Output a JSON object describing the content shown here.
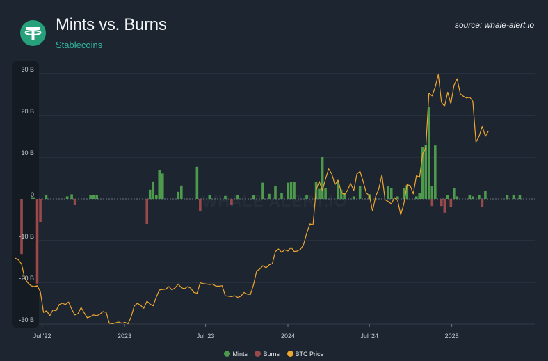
{
  "header": {
    "title": "Mints vs. Burns",
    "subtitle": "Stablecoins",
    "source": "source: whale-alert.io",
    "logo_icon": "tether-logo-icon"
  },
  "colors": {
    "background": "#1c2530",
    "mints": "#4e9a4c",
    "burns": "#9b4a4c",
    "btc_price": "#f0a730",
    "subtitle": "#34b3a0",
    "grid": "#3a4550",
    "axis_band": "#141b22"
  },
  "chart_data": {
    "type": "bar",
    "title": "Mints vs. Burns",
    "subtitle": "Stablecoins",
    "xlabel": "",
    "ylabel": "",
    "ylim": [
      -30,
      30
    ],
    "y_unit": "B",
    "y_ticks": [
      {
        "value": 30,
        "label": "30 B"
      },
      {
        "value": 20,
        "label": "20 B"
      },
      {
        "value": 10,
        "label": "10 B"
      },
      {
        "value": 0,
        "label": "0"
      },
      {
        "value": -10,
        "label": "-10 B"
      },
      {
        "value": -20,
        "label": "-20 B"
      },
      {
        "value": -30,
        "label": "-30 B"
      }
    ],
    "x_range": [
      "2022-05-02",
      "2025-07-07"
    ],
    "x_ticks": [
      {
        "date": "2022-07-01",
        "label": "Jul '22"
      },
      {
        "date": "2023-01-01",
        "label": "2023"
      },
      {
        "date": "2023-07-01",
        "label": "Jul '23"
      },
      {
        "date": "2024-01-01",
        "label": "2024"
      },
      {
        "date": "2024-07-01",
        "label": "Jul '24"
      },
      {
        "date": "2025-01-01",
        "label": "2025"
      }
    ],
    "legend": {
      "placement": "bottom-center",
      "items": [
        "Mints",
        "Burns",
        "BTC Price"
      ]
    },
    "watermark": "WHALE ALERT.IO",
    "series": [
      {
        "name": "Mints",
        "kind": "bar",
        "points": [
          [
            "2022-06-08",
            0.4
          ],
          [
            "2022-06-12",
            0.4
          ],
          [
            "2022-07-10",
            1.0
          ],
          [
            "2022-08-26",
            0.6
          ],
          [
            "2022-09-05",
            1.1
          ],
          [
            "2022-10-17",
            0.9
          ],
          [
            "2022-10-24",
            0.9
          ],
          [
            "2022-10-31",
            0.9
          ],
          [
            "2023-02-27",
            2.2
          ],
          [
            "2023-03-06",
            4.2
          ],
          [
            "2023-03-13",
            1.0
          ],
          [
            "2023-03-20",
            7.0
          ],
          [
            "2023-03-27",
            6.1
          ],
          [
            "2023-05-01",
            1.7
          ],
          [
            "2023-05-08",
            3.2
          ],
          [
            "2023-06-12",
            7.7
          ],
          [
            "2023-07-10",
            1.0
          ],
          [
            "2023-08-14",
            0.7
          ],
          [
            "2023-09-11",
            0.9
          ],
          [
            "2023-10-16",
            0.9
          ],
          [
            "2023-11-06",
            3.9
          ],
          [
            "2023-11-20",
            1.2
          ],
          [
            "2023-12-04",
            3.1
          ],
          [
            "2023-12-18",
            1.5
          ],
          [
            "2024-01-01",
            3.9
          ],
          [
            "2024-01-08",
            4.1
          ],
          [
            "2024-01-15",
            4.1
          ],
          [
            "2024-02-12",
            1.0
          ],
          [
            "2024-03-04",
            4.0
          ],
          [
            "2024-03-11",
            2.4
          ],
          [
            "2024-03-18",
            10.0
          ],
          [
            "2024-03-25",
            2.6
          ],
          [
            "2024-04-22",
            4.4
          ],
          [
            "2024-04-29",
            2.2
          ],
          [
            "2024-05-06",
            1.4
          ],
          [
            "2024-05-27",
            0.6
          ],
          [
            "2024-06-10",
            3.1
          ],
          [
            "2024-07-01",
            1.1
          ],
          [
            "2024-08-12",
            3.1
          ],
          [
            "2024-08-19",
            2.6
          ],
          [
            "2024-09-02",
            0.6
          ],
          [
            "2024-09-16",
            2.6
          ],
          [
            "2024-09-23",
            3.3
          ],
          [
            "2024-10-14",
            0.6
          ],
          [
            "2024-10-21",
            1.4
          ],
          [
            "2024-10-28",
            12.4
          ],
          [
            "2024-11-04",
            13.0
          ],
          [
            "2024-11-11",
            22.0
          ],
          [
            "2024-11-18",
            3.0
          ],
          [
            "2024-11-25",
            12.8
          ],
          [
            "2024-12-23",
            0.9
          ],
          [
            "2025-01-06",
            2.6
          ],
          [
            "2025-01-13",
            0.6
          ],
          [
            "2025-02-10",
            1.0
          ],
          [
            "2025-02-17",
            0.6
          ],
          [
            "2025-03-03",
            0.9
          ],
          [
            "2025-03-17",
            2.0
          ],
          [
            "2025-05-05",
            0.9
          ],
          [
            "2025-05-19",
            0.9
          ],
          [
            "2025-06-02",
            0.9
          ]
        ]
      },
      {
        "name": "Burns",
        "kind": "bar",
        "points": [
          [
            "2022-05-16",
            -13.2
          ],
          [
            "2022-06-20",
            -20.3
          ],
          [
            "2022-06-27",
            -5.5
          ],
          [
            "2022-09-12",
            -1.5
          ],
          [
            "2023-02-20",
            -6.0
          ],
          [
            "2023-06-19",
            -3.0
          ],
          [
            "2023-08-28",
            -1.5
          ],
          [
            "2024-11-18",
            -1.7
          ],
          [
            "2024-12-09",
            -1.7
          ],
          [
            "2024-12-16",
            -3.3
          ],
          [
            "2024-12-30",
            -2.0
          ],
          [
            "2025-03-10",
            -2.0
          ]
        ]
      },
      {
        "name": "BTC Price",
        "kind": "line",
        "points": [
          [
            "2022-05-02",
            -14.2
          ],
          [
            "2022-05-09",
            -14.6
          ],
          [
            "2022-05-16",
            -15.6
          ],
          [
            "2022-05-23",
            -19.0
          ],
          [
            "2022-05-30",
            -20.1
          ],
          [
            "2022-06-06",
            -20.8
          ],
          [
            "2022-06-13",
            -21.0
          ],
          [
            "2022-06-20",
            -20.8
          ],
          [
            "2022-06-27",
            -22.2
          ],
          [
            "2022-07-04",
            -27.2
          ],
          [
            "2022-07-11",
            -26.8
          ],
          [
            "2022-07-18",
            -28.0
          ],
          [
            "2022-07-25",
            -26.6
          ],
          [
            "2022-08-01",
            -26.8
          ],
          [
            "2022-08-08",
            -25.3
          ],
          [
            "2022-08-15",
            -25.0
          ],
          [
            "2022-08-22",
            -25.3
          ],
          [
            "2022-08-29",
            -24.7
          ],
          [
            "2022-09-05",
            -26.4
          ],
          [
            "2022-09-12",
            -27.8
          ],
          [
            "2022-09-19",
            -27.5
          ],
          [
            "2022-09-26",
            -26.0
          ],
          [
            "2022-10-03",
            -27.3
          ],
          [
            "2022-10-10",
            -28.5
          ],
          [
            "2022-10-17",
            -28.2
          ],
          [
            "2022-10-24",
            -27.8
          ],
          [
            "2022-10-31",
            -28.0
          ],
          [
            "2022-11-07",
            -27.6
          ],
          [
            "2022-11-14",
            -27.0
          ],
          [
            "2022-11-21",
            -27.2
          ],
          [
            "2022-11-28",
            -29.8
          ],
          [
            "2022-12-05",
            -29.9
          ],
          [
            "2022-12-12",
            -29.7
          ],
          [
            "2022-12-19",
            -29.5
          ],
          [
            "2022-12-26",
            -29.8
          ],
          [
            "2023-01-02",
            -29.6
          ],
          [
            "2023-01-09",
            -29.9
          ],
          [
            "2023-01-16",
            -28.2
          ],
          [
            "2023-01-23",
            -25.6
          ],
          [
            "2023-01-30",
            -25.0
          ],
          [
            "2023-02-06",
            -25.5
          ],
          [
            "2023-02-13",
            -26.2
          ],
          [
            "2023-02-20",
            -24.5
          ],
          [
            "2023-02-27",
            -25.2
          ],
          [
            "2023-03-06",
            -25.6
          ],
          [
            "2023-03-13",
            -23.5
          ],
          [
            "2023-03-20",
            -21.8
          ],
          [
            "2023-03-27",
            -21.7
          ],
          [
            "2023-04-03",
            -21.6
          ],
          [
            "2023-04-10",
            -21.0
          ],
          [
            "2023-04-17",
            -21.8
          ],
          [
            "2023-04-24",
            -21.3
          ],
          [
            "2023-05-01",
            -20.4
          ],
          [
            "2023-05-08",
            -21.3
          ],
          [
            "2023-05-15",
            -21.5
          ],
          [
            "2023-05-22",
            -21.0
          ],
          [
            "2023-05-29",
            -21.4
          ],
          [
            "2023-06-05",
            -22.4
          ],
          [
            "2023-06-12",
            -22.6
          ],
          [
            "2023-06-19",
            -20.1
          ],
          [
            "2023-06-26",
            -20.3
          ],
          [
            "2023-07-03",
            -20.4
          ],
          [
            "2023-07-10",
            -20.5
          ],
          [
            "2023-07-17",
            -20.4
          ],
          [
            "2023-07-24",
            -20.9
          ],
          [
            "2023-07-31",
            -20.9
          ],
          [
            "2023-08-07",
            -20.8
          ],
          [
            "2023-08-14",
            -23.2
          ],
          [
            "2023-08-21",
            -23.3
          ],
          [
            "2023-08-28",
            -23.4
          ],
          [
            "2023-09-04",
            -23.2
          ],
          [
            "2023-09-11",
            -23.6
          ],
          [
            "2023-09-18",
            -23.3
          ],
          [
            "2023-09-25",
            -22.4
          ],
          [
            "2023-10-02",
            -22.8
          ],
          [
            "2023-10-09",
            -22.9
          ],
          [
            "2023-10-16",
            -20.6
          ],
          [
            "2023-10-23",
            -17.3
          ],
          [
            "2023-10-30",
            -16.8
          ],
          [
            "2023-11-06",
            -16.0
          ],
          [
            "2023-11-13",
            -16.5
          ],
          [
            "2023-11-20",
            -15.8
          ],
          [
            "2023-11-27",
            -15.5
          ],
          [
            "2023-12-04",
            -12.6
          ],
          [
            "2023-12-11",
            -12.0
          ],
          [
            "2023-12-18",
            -12.8
          ],
          [
            "2023-12-25",
            -12.2
          ],
          [
            "2024-01-01",
            -12.5
          ],
          [
            "2024-01-08",
            -11.6
          ],
          [
            "2024-01-15",
            -12.6
          ],
          [
            "2024-01-22",
            -12.5
          ],
          [
            "2024-01-29",
            -12.1
          ],
          [
            "2024-02-05",
            -10.9
          ],
          [
            "2024-02-12",
            -8.2
          ],
          [
            "2024-02-19",
            -6.0
          ],
          [
            "2024-02-26",
            -6.2
          ],
          [
            "2024-03-04",
            2.2
          ],
          [
            "2024-03-11",
            4.2
          ],
          [
            "2024-03-18",
            2.0
          ],
          [
            "2024-03-25",
            4.8
          ],
          [
            "2024-04-01",
            7.2
          ],
          [
            "2024-04-08",
            6.0
          ],
          [
            "2024-04-15",
            3.4
          ],
          [
            "2024-04-22",
            4.5
          ],
          [
            "2024-04-29",
            1.6
          ],
          [
            "2024-05-06",
            1.0
          ],
          [
            "2024-05-13",
            2.0
          ],
          [
            "2024-05-20",
            3.7
          ],
          [
            "2024-05-27",
            2.0
          ],
          [
            "2024-06-03",
            6.0
          ],
          [
            "2024-06-10",
            6.6
          ],
          [
            "2024-06-17",
            4.2
          ],
          [
            "2024-06-24",
            1.4
          ],
          [
            "2024-07-01",
            0.8
          ],
          [
            "2024-07-08",
            -2.9
          ],
          [
            "2024-07-15",
            0.6
          ],
          [
            "2024-07-22",
            2.4
          ],
          [
            "2024-07-29",
            5.8
          ],
          [
            "2024-08-05",
            -0.2
          ],
          [
            "2024-08-12",
            -0.6
          ],
          [
            "2024-08-19",
            -1.2
          ],
          [
            "2024-08-26",
            0.3
          ],
          [
            "2024-09-02",
            -0.3
          ],
          [
            "2024-09-09",
            -3.8
          ],
          [
            "2024-09-16",
            -1.2
          ],
          [
            "2024-09-23",
            3.4
          ],
          [
            "2024-09-30",
            3.2
          ],
          [
            "2024-10-07",
            1.2
          ],
          [
            "2024-10-14",
            5.6
          ],
          [
            "2024-10-21",
            5.2
          ],
          [
            "2024-10-28",
            10.8
          ],
          [
            "2024-11-04",
            12.3
          ],
          [
            "2024-11-11",
            25.4
          ],
          [
            "2024-11-18",
            24.7
          ],
          [
            "2024-11-25",
            26.8
          ],
          [
            "2024-12-02",
            29.8
          ],
          [
            "2024-12-09",
            23.2
          ],
          [
            "2024-12-16",
            22.2
          ],
          [
            "2024-12-23",
            25.6
          ],
          [
            "2024-12-30",
            22.8
          ],
          [
            "2025-01-06",
            27.2
          ],
          [
            "2025-01-13",
            28.8
          ],
          [
            "2025-01-20",
            25.2
          ],
          [
            "2025-01-27",
            24.6
          ],
          [
            "2025-02-03",
            24.2
          ],
          [
            "2025-02-10",
            24.4
          ],
          [
            "2025-02-17",
            23.4
          ],
          [
            "2025-02-24",
            13.6
          ],
          [
            "2025-03-03",
            15.0
          ],
          [
            "2025-03-10",
            17.4
          ],
          [
            "2025-03-17",
            15.0
          ],
          [
            "2025-03-24",
            16.3
          ]
        ]
      }
    ]
  }
}
